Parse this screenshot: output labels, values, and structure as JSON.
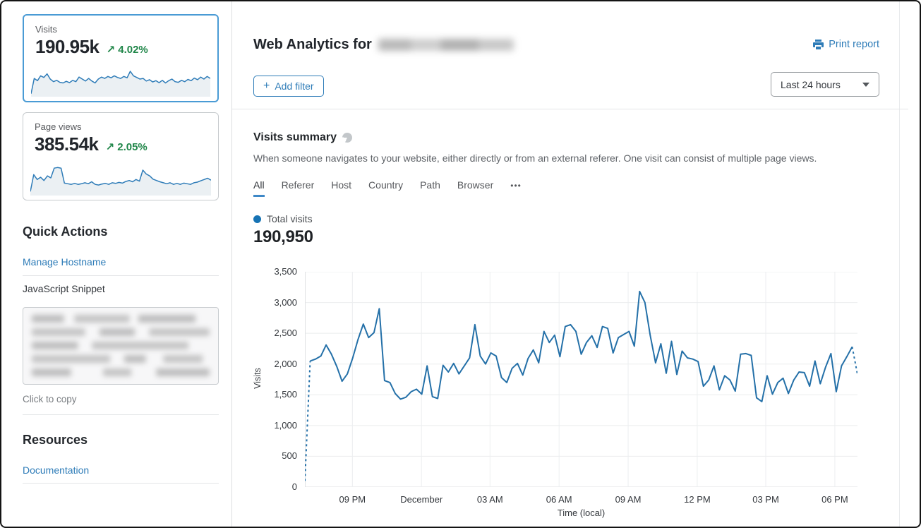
{
  "colors": {
    "accent_blue": "#2e7cb8",
    "chart_line_blue": "#2470a8",
    "positive_green": "#208649",
    "selected_card_border": "#4a9bd5"
  },
  "header": {
    "title": "Web Analytics for",
    "print_label": "Print report"
  },
  "filter_bar": {
    "add_filter": {
      "plus": "+",
      "label": "Add filter"
    },
    "time_range": "Last 24 hours"
  },
  "sidebar": {
    "stat_cards": [
      {
        "label": "Visits",
        "value": "190.95k",
        "arrow": "↗",
        "delta": "4.02%",
        "selected": true
      },
      {
        "label": "Page views",
        "value": "385.54k",
        "arrow": "↗",
        "delta": "2.05%",
        "selected": false
      }
    ],
    "quick_actions": {
      "title": "Quick Actions",
      "manage_link": "Manage Hostname",
      "snippet_label": "JavaScript Snippet",
      "copy_hint": "Click to copy"
    },
    "resources": {
      "title": "Resources",
      "doc_link": "Documentation"
    }
  },
  "summary": {
    "title": "Visits summary",
    "description": "When someone navigates to your website, either directly or from an external referer. One visit can consist of multiple page views.",
    "tabs": [
      "All",
      "Referer",
      "Host",
      "Country",
      "Path",
      "Browser",
      "•••"
    ],
    "active_tab": "All",
    "legend_label": "Total visits",
    "total_value": "190,950"
  },
  "chart_data": [
    {
      "id": "visits-sparkline",
      "type": "line",
      "title": "Visits 24h sparkline",
      "ylim": [
        0,
        100
      ],
      "grid": false,
      "values": [
        5,
        52,
        45,
        60,
        55,
        66,
        50,
        42,
        46,
        40,
        38,
        43,
        39,
        46,
        42,
        56,
        50,
        44,
        52,
        44,
        38,
        50,
        56,
        52,
        58,
        54,
        60,
        55,
        52,
        58,
        54,
        74,
        60,
        55,
        50,
        52,
        44,
        48,
        41,
        45,
        39,
        46,
        38,
        45,
        50,
        42,
        40,
        46,
        42,
        49,
        45,
        53,
        48,
        56,
        50,
        58,
        52
      ]
    },
    {
      "id": "pageviews-sparkline",
      "type": "line",
      "title": "Page views 24h sparkline",
      "ylim": [
        0,
        100
      ],
      "grid": false,
      "values": [
        8,
        60,
        45,
        52,
        42,
        56,
        50,
        80,
        82,
        80,
        34,
        32,
        30,
        33,
        30,
        32,
        35,
        32,
        38,
        30,
        28,
        31,
        33,
        30,
        35,
        33,
        36,
        34,
        39,
        42,
        38,
        45,
        40,
        74,
        62,
        56,
        46,
        42,
        38,
        35,
        32,
        35,
        30,
        33,
        30,
        34,
        32,
        30,
        35,
        37,
        41,
        45,
        49,
        43
      ]
    },
    {
      "id": "visits-over-time",
      "type": "line",
      "title": "Total visits",
      "xlabel": "Time (local)",
      "ylabel": "Visits",
      "ylim": [
        0,
        3500
      ],
      "grid": true,
      "legend_position": "top-left",
      "y_ticks": [
        {
          "v": 0,
          "label": "0"
        },
        {
          "v": 500,
          "label": "500"
        },
        {
          "v": 1000,
          "label": "1,000"
        },
        {
          "v": 1500,
          "label": "1,500"
        },
        {
          "v": 2000,
          "label": "2,000"
        },
        {
          "v": 2500,
          "label": "2,500"
        },
        {
          "v": 3000,
          "label": "3,000"
        },
        {
          "v": 3500,
          "label": "3,500"
        }
      ],
      "x_ticks": [
        {
          "f": 0.086,
          "label": "09 PM"
        },
        {
          "f": 0.211,
          "label": "December"
        },
        {
          "f": 0.335,
          "label": "03 AM"
        },
        {
          "f": 0.46,
          "label": "06 AM"
        },
        {
          "f": 0.585,
          "label": "09 AM"
        },
        {
          "f": 0.71,
          "label": "12 PM"
        },
        {
          "f": 0.834,
          "label": "03 PM"
        },
        {
          "f": 0.959,
          "label": "06 PM"
        }
      ],
      "series": [
        {
          "name": "Total visits",
          "color": "#2470a8",
          "dashed_first_segment": true,
          "dashed_last_segment": true,
          "values": [
            100,
            2050,
            2080,
            2130,
            2310,
            2160,
            1960,
            1720,
            1840,
            2100,
            2400,
            2650,
            2430,
            2510,
            2900,
            1730,
            1700,
            1520,
            1430,
            1460,
            1550,
            1590,
            1510,
            1970,
            1470,
            1440,
            1980,
            1870,
            2010,
            1840,
            1970,
            2100,
            2640,
            2130,
            2000,
            2180,
            2130,
            1780,
            1700,
            1930,
            2010,
            1820,
            2090,
            2230,
            2020,
            2530,
            2350,
            2470,
            2120,
            2610,
            2640,
            2530,
            2160,
            2350,
            2460,
            2270,
            2610,
            2580,
            2180,
            2430,
            2480,
            2530,
            2290,
            3180,
            3000,
            2460,
            2020,
            2330,
            1850,
            2370,
            1830,
            2210,
            2100,
            2080,
            2040,
            1640,
            1740,
            1970,
            1580,
            1810,
            1740,
            1560,
            2160,
            2170,
            2140,
            1450,
            1390,
            1810,
            1510,
            1700,
            1770,
            1520,
            1740,
            1870,
            1860,
            1640,
            2050,
            1680,
            1950,
            2170,
            1550,
            1970,
            2120,
            2280,
            1830
          ]
        }
      ]
    }
  ]
}
